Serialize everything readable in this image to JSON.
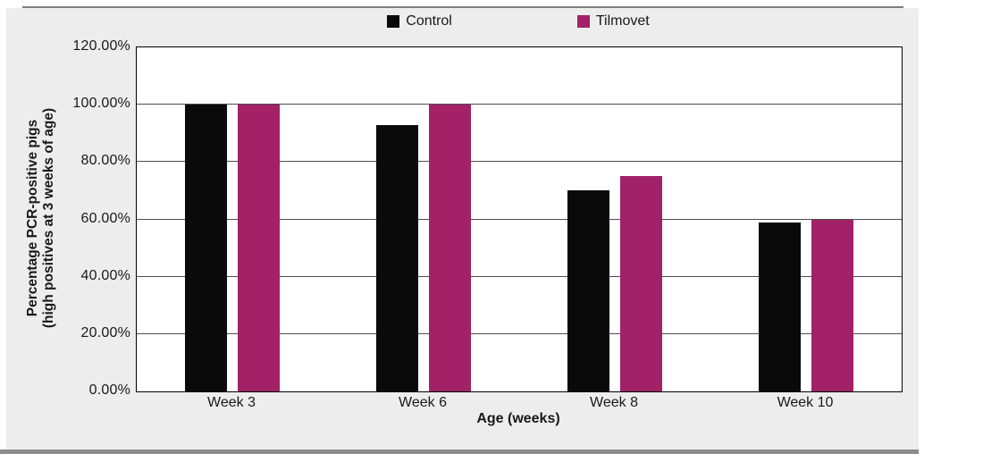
{
  "page": {
    "background": "#FFFFFF",
    "panel_background": "#EDEDEE",
    "top_rule_color": "#7D7D7D",
    "bottom_rule_color": "#8C8C8C",
    "text_color": "#191919",
    "gridline_color": "#4D4D4D",
    "plot_border_color": "#000000"
  },
  "chart_data": {
    "type": "bar",
    "title": "",
    "categories": [
      "Week 3",
      "Week 6",
      "Week 8",
      "Week 10"
    ],
    "series": [
      {
        "name": "Control",
        "color": "#0A0A0A",
        "values": [
          100,
          93,
          70,
          59
        ]
      },
      {
        "name": "Tilmovet",
        "color": "#A22167",
        "values": [
          100,
          100,
          75,
          60
        ]
      }
    ],
    "xlabel": "Age (weeks)",
    "ylabel_lines": [
      "Percentage PCR-positive pigs",
      "(high positives at 3 weeks of age)"
    ],
    "ylim": [
      0,
      120
    ],
    "ytick_values": [
      0,
      20,
      40,
      60,
      80,
      100,
      120
    ],
    "ytick_labels": [
      "0.00%",
      "20.00%",
      "40.00%",
      "60.00%",
      "80.00%",
      "100.00%",
      "120.00%"
    ],
    "grid": true,
    "legend_position": "top-center"
  }
}
